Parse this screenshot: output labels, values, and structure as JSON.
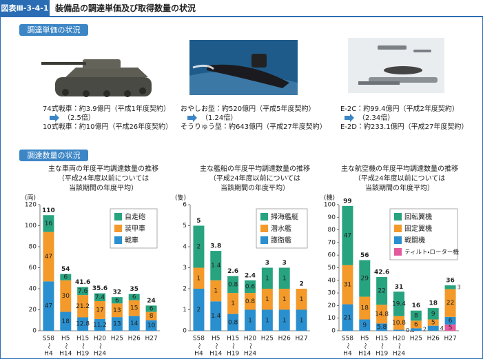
{
  "header": {
    "figure_no": "図表Ⅲ-3-4-1",
    "title": "装備品の調達単価及び取得数量の状況"
  },
  "unit_price": {
    "label": "調達単価の状況",
    "items": [
      {
        "before": "74式戦車：約3.9億円（平成1年度契約）",
        "ratio": "（2.5倍）",
        "after": "10式戦車：約10億円（平成26年度契約）"
      },
      {
        "before": "おやしお型：約520億円（平成5年度契約）",
        "ratio": "（1.24倍）",
        "after": "そうりゅう型：約643億円（平成27年度契約）"
      },
      {
        "before": "E-2C：約99.4億円（平成2年度契約）",
        "ratio": "（2.34倍）",
        "after": "E-2D：約233.1億円（平成27年度契約）"
      }
    ]
  },
  "quantity_label": "調達数量の状況",
  "chart_data": [
    {
      "type": "bar",
      "stacked": true,
      "title": "主な車両の年度平均調達数量の推移",
      "subtitle": [
        "（平成24年度以前については",
        "当該期間の年度平均）"
      ],
      "y_label": "(両)",
      "categories": [
        [
          "S58",
          "～",
          "H4"
        ],
        [
          "H5",
          "～",
          "H14"
        ],
        [
          "H15",
          "～",
          "H19"
        ],
        [
          "H20",
          "～",
          "H24"
        ],
        [
          "H25"
        ],
        [
          "H26"
        ],
        [
          "H27"
        ]
      ],
      "series": [
        {
          "name": "戦車",
          "color": "#2a8fce",
          "values": [
            47,
            18,
            12.8,
            11.2,
            13,
            14,
            10
          ]
        },
        {
          "name": "装甲車",
          "color": "#f39a2b",
          "values": [
            47,
            30,
            21.2,
            17,
            13,
            15,
            8
          ]
        },
        {
          "name": "自走砲",
          "color": "#27a37f",
          "values": [
            16,
            6,
            7.6,
            7.4,
            6,
            6,
            6
          ]
        }
      ],
      "totals": [
        110,
        54,
        41.6,
        35.6,
        32,
        35,
        24
      ],
      "ylim": [
        0,
        120
      ],
      "yticks": [
        0,
        20,
        40,
        60,
        80,
        100,
        120
      ],
      "legend": "upper right"
    },
    {
      "type": "bar",
      "stacked": true,
      "title": "主な艦船の年度平均調達数量の推移",
      "subtitle": [
        "（平成24年度以前については",
        "当該期間の年度平均）"
      ],
      "y_label": "(隻)",
      "categories": [
        [
          "S58",
          "～",
          "H4"
        ],
        [
          "H5",
          "～",
          "H14"
        ],
        [
          "H15",
          "～",
          "H19"
        ],
        [
          "H20",
          "～",
          "H24"
        ],
        [
          "H25"
        ],
        [
          "H26"
        ],
        [
          "H27"
        ]
      ],
      "series": [
        {
          "name": "護衛艦",
          "color": "#2a8fce",
          "values": [
            2,
            1.4,
            0.8,
            1,
            1,
            1,
            1
          ]
        },
        {
          "name": "潜水艦",
          "color": "#f39a2b",
          "values": [
            1,
            1,
            1,
            0.8,
            1,
            1,
            1
          ]
        },
        {
          "name": "掃海艦艇",
          "color": "#27a37f",
          "values": [
            2,
            1.4,
            0.8,
            0.6,
            1,
            1,
            0
          ]
        }
      ],
      "totals": [
        5,
        3.8,
        2.6,
        2.4,
        3,
        3,
        2
      ],
      "ylim": [
        0,
        6
      ],
      "yticks": [
        0,
        1,
        2,
        3,
        4,
        5,
        6
      ],
      "legend": "upper right"
    },
    {
      "type": "bar",
      "stacked": true,
      "title": "主な航空機の年度平均調達数量の推移",
      "subtitle": [
        "（平成24年度以前については",
        "当該期間の年度平均）"
      ],
      "y_label": "(機)",
      "categories": [
        [
          "S58",
          "～",
          "H4"
        ],
        [
          "H5",
          "～",
          "H14"
        ],
        [
          "H15",
          "～",
          "H19"
        ],
        [
          "H20",
          "～",
          "H24"
        ],
        [
          "H25"
        ],
        [
          "H26"
        ],
        [
          "H27"
        ]
      ],
      "series": [
        {
          "name": "ティルト・ローター機",
          "color": "#e45a9e",
          "values": [
            0,
            0,
            0,
            0,
            0,
            0,
            5
          ]
        },
        {
          "name": "戦闘機",
          "color": "#2a8fce",
          "values": [
            21,
            9,
            5.8,
            0.8,
            2,
            4,
            6
          ]
        },
        {
          "name": "固定翼機",
          "color": "#f39a2b",
          "values": [
            31,
            18,
            14.8,
            10.8,
            6,
            5,
            22
          ]
        },
        {
          "name": "回転翼機",
          "color": "#27a37f",
          "values": [
            47,
            29,
            22,
            19.4,
            8,
            9,
            3
          ]
        }
      ],
      "totals": [
        99,
        56,
        42.6,
        31,
        16,
        18,
        36
      ],
      "ylim": [
        0,
        100
      ],
      "yticks": [
        0,
        10,
        20,
        30,
        40,
        50,
        60,
        70,
        80,
        90,
        100
      ],
      "legend": "upper right"
    }
  ]
}
